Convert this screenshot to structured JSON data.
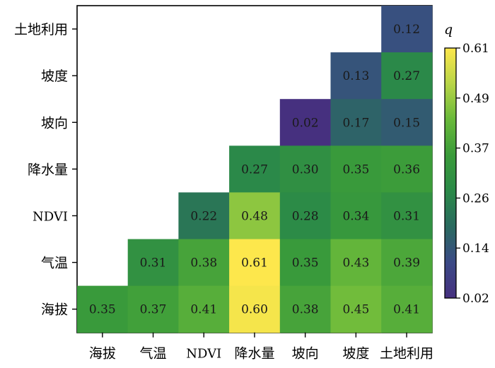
{
  "chart_data": {
    "type": "heatmap",
    "title": "",
    "categories": [
      "海拔",
      "气温",
      "NDVI",
      "降水量",
      "坡向",
      "坡度",
      "土地利用"
    ],
    "cells": [
      {
        "row": "土地利用",
        "col": "土地利用",
        "value": 0.12
      },
      {
        "row": "坡度",
        "col": "坡度",
        "value": 0.13
      },
      {
        "row": "坡度",
        "col": "土地利用",
        "value": 0.27
      },
      {
        "row": "坡向",
        "col": "坡向",
        "value": 0.02
      },
      {
        "row": "坡向",
        "col": "坡度",
        "value": 0.17
      },
      {
        "row": "坡向",
        "col": "土地利用",
        "value": 0.15
      },
      {
        "row": "降水量",
        "col": "降水量",
        "value": 0.27
      },
      {
        "row": "降水量",
        "col": "坡向",
        "value": 0.3
      },
      {
        "row": "降水量",
        "col": "坡度",
        "value": 0.35
      },
      {
        "row": "降水量",
        "col": "土地利用",
        "value": 0.36
      },
      {
        "row": "NDVI",
        "col": "NDVI",
        "value": 0.22
      },
      {
        "row": "NDVI",
        "col": "降水量",
        "value": 0.48
      },
      {
        "row": "NDVI",
        "col": "坡向",
        "value": 0.28
      },
      {
        "row": "NDVI",
        "col": "坡度",
        "value": 0.34
      },
      {
        "row": "NDVI",
        "col": "土地利用",
        "value": 0.31
      },
      {
        "row": "气温",
        "col": "气温",
        "value": 0.31
      },
      {
        "row": "气温",
        "col": "NDVI",
        "value": 0.38
      },
      {
        "row": "气温",
        "col": "降水量",
        "value": 0.61
      },
      {
        "row": "气温",
        "col": "坡向",
        "value": 0.35
      },
      {
        "row": "气温",
        "col": "坡度",
        "value": 0.43
      },
      {
        "row": "气温",
        "col": "土地利用",
        "value": 0.39
      },
      {
        "row": "海拔",
        "col": "海拔",
        "value": 0.35
      },
      {
        "row": "海拔",
        "col": "气温",
        "value": 0.37
      },
      {
        "row": "海拔",
        "col": "NDVI",
        "value": 0.41
      },
      {
        "row": "海拔",
        "col": "降水量",
        "value": 0.6
      },
      {
        "row": "海拔",
        "col": "坡向",
        "value": 0.38
      },
      {
        "row": "海拔",
        "col": "坡度",
        "value": 0.45
      },
      {
        "row": "海拔",
        "col": "土地利用",
        "value": 0.41
      }
    ],
    "colorbar": {
      "label": "q",
      "ticks": [
        "0.61",
        "0.49",
        "0.37",
        "0.26",
        "0.14",
        "0.02"
      ],
      "range": [
        0.02,
        0.61
      ],
      "colors": [
        "#fde74c",
        "#b8d547",
        "#69b93a",
        "#3a9b3a",
        "#2b8a48",
        "#2a6a5f",
        "#3b4a86",
        "#46307f"
      ]
    },
    "colormap": "viridis-like",
    "grid": false
  }
}
